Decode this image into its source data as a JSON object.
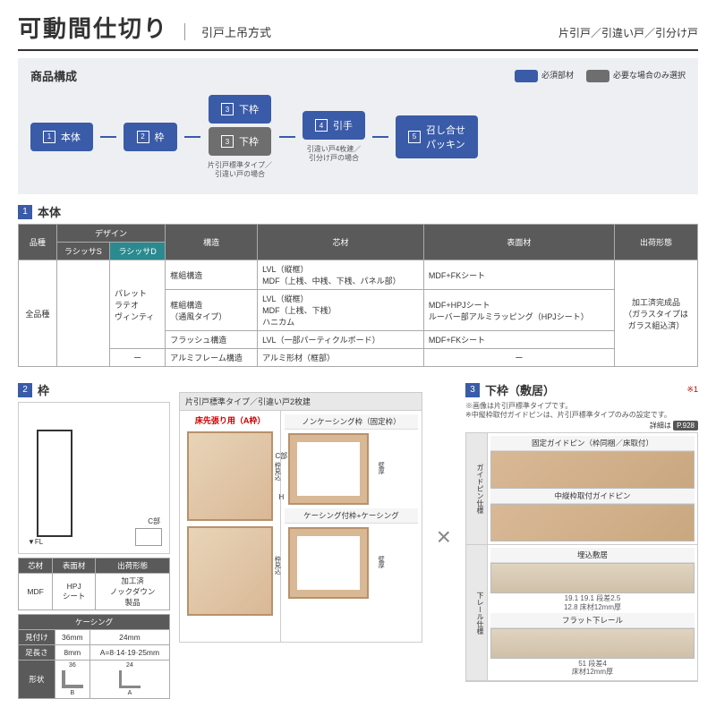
{
  "header": {
    "main": "可動間仕切り",
    "sub": "引戸上吊方式",
    "right": "片引戸／引違い戸／引分け戸"
  },
  "composition": {
    "title": "商品構成",
    "legend": [
      {
        "color": "#3a5ba8",
        "label": "必須部材"
      },
      {
        "color": "#6e6e6e",
        "label": "必要な場合のみ選択"
      }
    ],
    "flow": [
      {
        "num": "1",
        "label": "本体",
        "note": ""
      },
      {
        "num": "2",
        "label": "枠",
        "note": ""
      },
      {
        "num": "3",
        "label": "下枠",
        "note": "片引戸標準タイプ／\n引違い戸の場合",
        "stacked": true,
        "second": {
          "num": "3",
          "label": "下枠"
        }
      },
      {
        "num": "4",
        "label": "引手",
        "note": "引違い戸4枚建／\n引分け戸の場合"
      },
      {
        "num": "5",
        "label": "召し合せ\nパッキン",
        "note": ""
      }
    ]
  },
  "sec1": {
    "num": "1",
    "title": "本体"
  },
  "table1": {
    "head1": [
      "品種",
      "デザイン",
      "構造",
      "芯材",
      "表面材",
      "出荷形態"
    ],
    "head2": [
      "ラシッサS",
      "ラシッサD"
    ],
    "rows": [
      [
        "全品種",
        "",
        "パレット\nラテオ\nヴィンティ",
        "框組構造",
        "LVL（縦框）\nMDF（上桟、中桟、下桟、パネル部）",
        "MDF+FKシート",
        "加工済完成品\n（ガラスタイプは\nガラス組込済）"
      ],
      [
        "",
        "",
        "",
        "框組構造\n（通風タイプ）",
        "LVL（縦框）\nMDF（上桟、下桟）\nハニカム",
        "MDF+HPJシート\nルーバー部アルミラッピング（HPJシート）",
        ""
      ],
      [
        "",
        "",
        "",
        "フラッシュ構造",
        "LVL（一部パーティクルボード）",
        "MDF+FKシート",
        ""
      ],
      [
        "",
        "",
        "ー",
        "アルミフレーム構造",
        "アルミ形材（框部）",
        "ー",
        ""
      ]
    ]
  },
  "sec2": {
    "num": "2",
    "title": "枠"
  },
  "sec3": {
    "num": "3",
    "title": "下枠（敷居）",
    "note": "※1"
  },
  "sec3_notes": [
    "※画像は片引戸標準タイプです。",
    "※中縦枠取付ガイドピンは、片引戸標準タイプのみの設定です。"
  ],
  "detail_ref": {
    "label": "詳細は",
    "page": "P.928"
  },
  "left_small": {
    "head": [
      "芯材",
      "表面材",
      "出荷形態"
    ],
    "row": [
      "MDF",
      "HPJ\nシート",
      "加工済\nノックダウン\n製品"
    ]
  },
  "casing": {
    "title": "ケーシング",
    "rows": [
      {
        "k": "見付け",
        "a": "36mm",
        "b": "24mm"
      },
      {
        "k": "足長さ",
        "a": "8mm",
        "b": "A=8·14·19·25mm"
      },
      {
        "k": "形状",
        "a_dim": "36",
        "b_dim": "24"
      }
    ]
  },
  "mid_panel": {
    "header": "片引戸標準タイプ／引違い戸2枚建",
    "cell_a": "床先張り用（A枠）",
    "cell_b": "ノンケーシング枠（固定枠）",
    "cell_c": "ケーシング付枠+ケーシング",
    "marks": {
      "c": "C部",
      "h": "H",
      "fl": "▼FL",
      "wall": "壁厚",
      "frame": "枠見込"
    }
  },
  "right_panel": {
    "groups": [
      {
        "label": "ガイドピン\n仕様",
        "rows": [
          {
            "head": "固定ガイドピン（枠同梱／床取付）"
          },
          {
            "head": "中縦枠取付ガイドピン"
          }
        ]
      },
      {
        "label": "下レール\n仕様",
        "rows": [
          {
            "head": "埋込敷居",
            "dims": "19.1  19.1  段差2.5\n12.8  床材12mm厚"
          },
          {
            "head": "フラット下レール",
            "dims": "51  段差4\n床材12mm厚"
          }
        ]
      }
    ]
  }
}
